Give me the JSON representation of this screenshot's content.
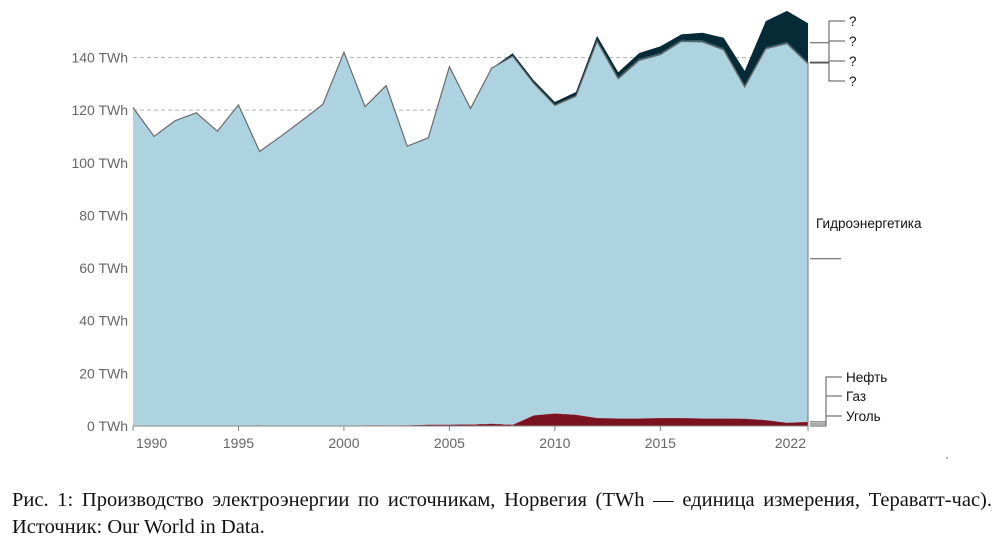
{
  "chart_data": {
    "type": "area",
    "stacked": true,
    "x": [
      1990,
      1991,
      1992,
      1993,
      1994,
      1995,
      1996,
      1997,
      1998,
      1999,
      2000,
      2001,
      2002,
      2003,
      2004,
      2005,
      2006,
      2007,
      2008,
      2009,
      2010,
      2011,
      2012,
      2013,
      2014,
      2015,
      2016,
      2017,
      2018,
      2019,
      2020,
      2021,
      2022
    ],
    "xlim": [
      1990,
      2022
    ],
    "ylim": [
      0,
      155
    ],
    "x_ticks": [
      "1990",
      "1995",
      "2000",
      "2005",
      "2010",
      "2015",
      "2022"
    ],
    "y_ticks": [
      "0 TWh",
      "20 TWh",
      "40 TWh",
      "60 TWh",
      "80 TWh",
      "100 TWh",
      "120 TWh",
      "140 TWh"
    ],
    "y_tick_values": [
      0,
      20,
      40,
      60,
      80,
      100,
      120,
      140
    ],
    "grid": true,
    "series": [
      {
        "name": "Уголь",
        "color": "#5e0f1b",
        "values": [
          0,
          0,
          0,
          0,
          0,
          0,
          0,
          0,
          0,
          0,
          0,
          0,
          0,
          0,
          0,
          0,
          0,
          0,
          0,
          0,
          0,
          0,
          0,
          0,
          0,
          0,
          0,
          0,
          0,
          0,
          0,
          0,
          0
        ]
      },
      {
        "name": "Газ",
        "color": "#7a1220",
        "values": [
          0,
          0,
          0,
          0,
          0,
          0,
          0,
          0,
          0,
          0,
          0,
          0,
          0.2,
          0.3,
          0.4,
          0.4,
          0.4,
          0.8,
          0.3,
          4,
          4.7,
          4.2,
          3,
          2.8,
          2.8,
          3,
          3,
          2.8,
          2.8,
          2.7,
          2.2,
          1.2,
          1.5
        ]
      },
      {
        "name": "Нефть",
        "color": "#8e1d2b",
        "values": [
          0,
          0,
          0,
          0,
          0,
          0,
          0.3,
          0,
          0,
          0.2,
          0,
          0.3,
          0.1,
          0,
          0.1,
          0.1,
          0.2,
          0.1,
          0.2,
          0.1,
          0.1,
          0.1,
          0.1,
          0.1,
          0.1,
          0.1,
          0.1,
          0.1,
          0.1,
          0.1,
          0.1,
          0.1,
          0.1
        ]
      },
      {
        "name": "Гидроэнергетика",
        "color": "#add3e1",
        "values": [
          121,
          110,
          116,
          119,
          112,
          122,
          104,
          110,
          116,
          122,
          142,
          121,
          129,
          106,
          109,
          136,
          120,
          135,
          140,
          126,
          117,
          121,
          143,
          129,
          136,
          138,
          143,
          143,
          140,
          126,
          141,
          144,
          136
        ]
      },
      {
        "name": "?",
        "color": "#1b5566",
        "values": [
          0,
          0,
          0,
          0,
          0,
          0,
          0,
          0,
          0,
          0,
          0,
          0,
          0,
          0,
          0,
          0,
          0,
          0,
          0.2,
          0.3,
          0.3,
          0.3,
          0.5,
          0.6,
          0.6,
          0.6,
          0.6,
          0.6,
          0.6,
          0.6,
          0.6,
          0.6,
          0.6
        ]
      },
      {
        "name": "?",
        "color": "#0f3f4d",
        "values": [
          0,
          0,
          0,
          0,
          0,
          0,
          0,
          0,
          0,
          0,
          0,
          0,
          0,
          0,
          0,
          0,
          0,
          0,
          0,
          0,
          0,
          0,
          0,
          0,
          0,
          0,
          0,
          0,
          0,
          0,
          0,
          0,
          0
        ]
      },
      {
        "name": "?",
        "color": "#0a3340",
        "values": [
          0,
          0,
          0,
          0,
          0,
          0,
          0,
          0,
          0,
          0,
          0,
          0,
          0,
          0,
          0,
          0,
          0,
          0,
          0,
          0,
          0,
          0,
          0,
          0,
          0,
          0,
          0,
          0,
          0,
          0,
          0,
          0,
          0
        ]
      },
      {
        "name": "?",
        "color": "#062a36",
        "values": [
          0,
          0,
          0,
          0,
          0,
          0,
          0,
          0,
          0,
          0,
          0,
          0,
          0,
          0,
          0,
          0,
          0,
          0,
          0.9,
          0.9,
          1.0,
          1.3,
          1.6,
          1.9,
          2.2,
          2.5,
          2.1,
          2.9,
          4,
          5.5,
          9.9,
          11.8,
          14.8
        ]
      }
    ]
  },
  "caption": "Рис. 1: Производство электроэнергии по источникам, Норвегия (TWh — единица измерения, Тераватт-час). Источник: Our World in Data."
}
